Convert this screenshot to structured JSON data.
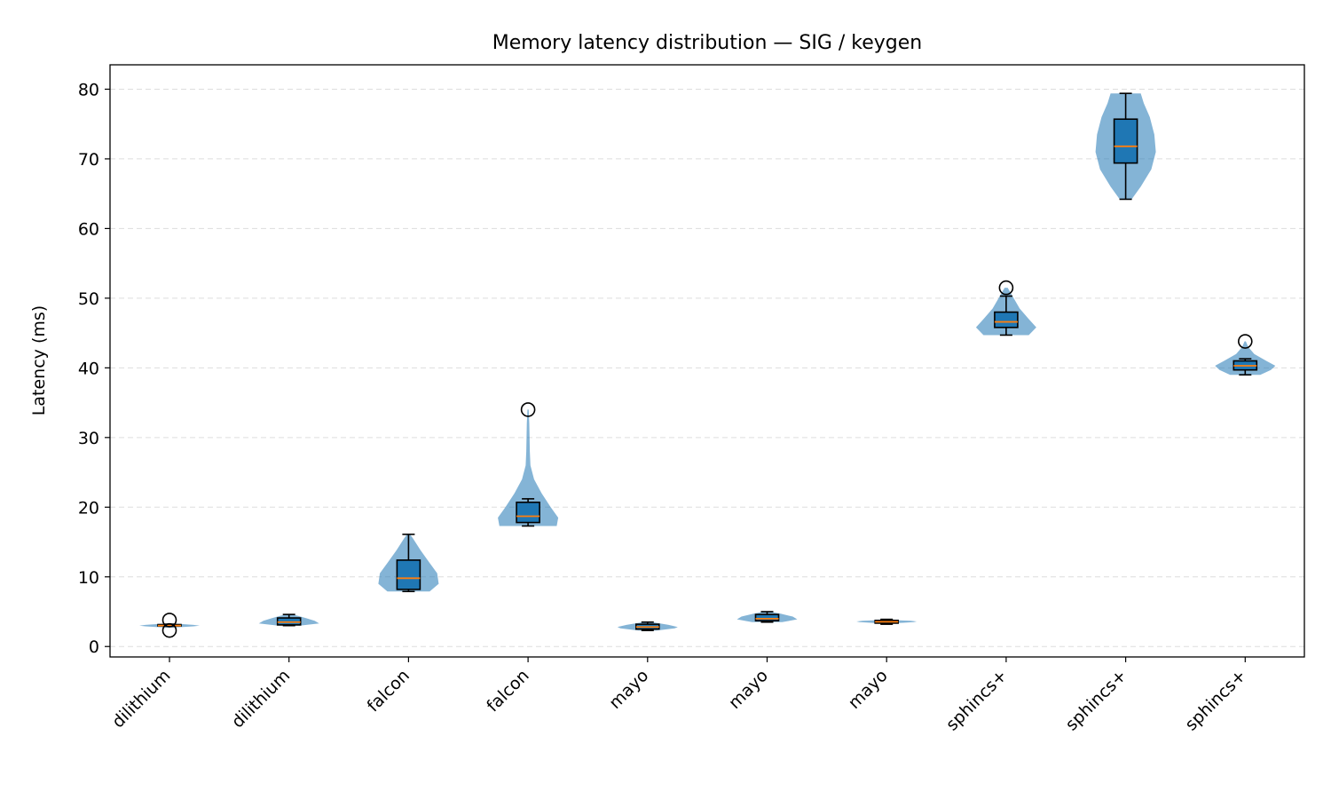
{
  "chart_data": {
    "type": "violin",
    "title": "Memory latency distribution — SIG / keygen",
    "xlabel": "",
    "ylabel": "Latency (ms)",
    "ylim": [
      -1.5,
      83.5
    ],
    "yticks": [
      0,
      10,
      20,
      30,
      40,
      50,
      60,
      70,
      80
    ],
    "grid": "y-dashed",
    "colors": {
      "violin": "#1f77b4",
      "violin_opacity": 0.55,
      "box": "#1f77b4",
      "median": "#ff7f0e",
      "whisker": "#000000",
      "grid": "#dddddd"
    },
    "categories": [
      "dilithium",
      "dilithium",
      "falcon",
      "falcon",
      "mayo",
      "mayo",
      "mayo",
      "sphincs+",
      "sphincs+",
      "sphincs+"
    ],
    "series": [
      {
        "category": "dilithium",
        "min": 2.9,
        "q1": 2.95,
        "median": 3.0,
        "q3": 3.15,
        "max": 3.2,
        "violin_min": 2.7,
        "violin_max": 3.3,
        "outliers": [
          3.8,
          2.3
        ],
        "density": [
          [
            2.7,
            0.1
          ],
          [
            2.9,
            0.8
          ],
          [
            3.0,
            1.0
          ],
          [
            3.1,
            0.8
          ],
          [
            3.3,
            0.1
          ]
        ]
      },
      {
        "category": "dilithium",
        "min": 3.0,
        "q1": 3.1,
        "median": 3.5,
        "q3": 4.1,
        "max": 4.6,
        "violin_min": 3.0,
        "violin_max": 4.6,
        "outliers": [],
        "density": [
          [
            3.0,
            0.35
          ],
          [
            3.3,
            1.0
          ],
          [
            3.7,
            0.85
          ],
          [
            4.1,
            0.55
          ],
          [
            4.4,
            0.3
          ],
          [
            4.6,
            0.1
          ]
        ]
      },
      {
        "category": "falcon",
        "min": 7.9,
        "q1": 8.2,
        "median": 9.8,
        "q3": 12.4,
        "max": 16.1,
        "violin_min": 7.9,
        "violin_max": 16.1,
        "outliers": [],
        "density": [
          [
            7.9,
            0.7
          ],
          [
            9.0,
            1.0
          ],
          [
            10.5,
            0.95
          ],
          [
            12.0,
            0.7
          ],
          [
            13.8,
            0.4
          ],
          [
            15.5,
            0.15
          ],
          [
            16.1,
            0.05
          ]
        ]
      },
      {
        "category": "falcon",
        "min": 17.3,
        "q1": 17.8,
        "median": 18.7,
        "q3": 20.7,
        "max": 21.2,
        "violin_min": 17.3,
        "violin_max": 34.0,
        "outliers": [
          34.0
        ],
        "density": [
          [
            17.3,
            0.95
          ],
          [
            18.5,
            1.0
          ],
          [
            20.0,
            0.75
          ],
          [
            22.0,
            0.45
          ],
          [
            24.0,
            0.2
          ],
          [
            26.0,
            0.08
          ],
          [
            28.0,
            0.06
          ],
          [
            30.0,
            0.05
          ],
          [
            32.0,
            0.04
          ],
          [
            34.0,
            0.02
          ]
        ]
      },
      {
        "category": "mayo",
        "min": 2.3,
        "q1": 2.5,
        "median": 2.8,
        "q3": 3.2,
        "max": 3.5,
        "violin_min": 2.3,
        "violin_max": 3.5,
        "outliers": [],
        "density": [
          [
            2.3,
            0.3
          ],
          [
            2.6,
            0.9
          ],
          [
            2.8,
            1.0
          ],
          [
            3.1,
            0.7
          ],
          [
            3.5,
            0.15
          ]
        ]
      },
      {
        "category": "mayo",
        "min": 3.5,
        "q1": 3.7,
        "median": 4.0,
        "q3": 4.6,
        "max": 5.0,
        "violin_min": 3.5,
        "violin_max": 5.0,
        "outliers": [],
        "density": [
          [
            3.5,
            0.5
          ],
          [
            3.9,
            1.0
          ],
          [
            4.3,
            0.85
          ],
          [
            4.7,
            0.45
          ],
          [
            5.0,
            0.1
          ]
        ]
      },
      {
        "category": "mayo",
        "min": 3.2,
        "q1": 3.35,
        "median": 3.55,
        "q3": 3.75,
        "max": 3.9,
        "violin_min": 3.3,
        "violin_max": 3.8,
        "outliers": [],
        "density": [
          [
            3.3,
            0.15
          ],
          [
            3.5,
            0.9
          ],
          [
            3.6,
            1.0
          ],
          [
            3.7,
            0.8
          ],
          [
            3.8,
            0.15
          ]
        ]
      },
      {
        "category": "sphincs+",
        "min": 44.7,
        "q1": 45.8,
        "median": 46.6,
        "q3": 48.0,
        "max": 50.3,
        "violin_min": 44.7,
        "violin_max": 51.5,
        "outliers": [
          51.5
        ],
        "density": [
          [
            44.7,
            0.75
          ],
          [
            45.8,
            1.0
          ],
          [
            47.0,
            0.75
          ],
          [
            48.5,
            0.45
          ],
          [
            50.0,
            0.25
          ],
          [
            51.5,
            0.05
          ]
        ]
      },
      {
        "category": "sphincs+",
        "min": 64.2,
        "q1": 69.4,
        "median": 71.8,
        "q3": 75.7,
        "max": 79.4,
        "violin_min": 64.2,
        "violin_max": 79.4,
        "outliers": [],
        "density": [
          [
            64.2,
            0.2
          ],
          [
            66.0,
            0.5
          ],
          [
            68.5,
            0.85
          ],
          [
            71.0,
            1.0
          ],
          [
            73.5,
            0.95
          ],
          [
            76.0,
            0.8
          ],
          [
            78.0,
            0.6
          ],
          [
            79.4,
            0.5
          ]
        ]
      },
      {
        "category": "sphincs+",
        "min": 39.0,
        "q1": 39.7,
        "median": 40.3,
        "q3": 41.0,
        "max": 41.3,
        "violin_min": 39.0,
        "violin_max": 43.8,
        "outliers": [
          43.8
        ],
        "density": [
          [
            39.0,
            0.5
          ],
          [
            39.7,
            0.85
          ],
          [
            40.3,
            1.0
          ],
          [
            41.0,
            0.7
          ],
          [
            42.0,
            0.3
          ],
          [
            43.0,
            0.1
          ],
          [
            43.8,
            0.02
          ]
        ]
      }
    ]
  }
}
